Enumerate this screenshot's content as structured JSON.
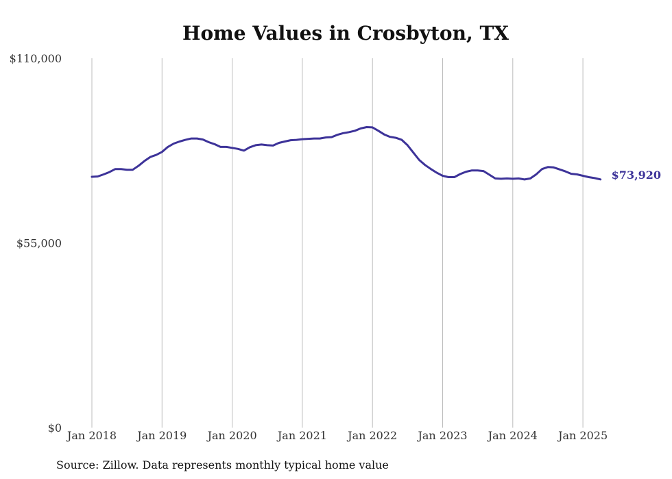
{
  "chart_data": {
    "type": "line",
    "title": "Home Values in Crosbyton, TX",
    "source_note": "Source: Zillow. Data represents monthly typical home value",
    "x_tick_labels": [
      "Jan 2018",
      "Jan 2019",
      "Jan 2020",
      "Jan 2021",
      "Jan 2022",
      "Jan 2023",
      "Jan 2024",
      "Jan 2025"
    ],
    "x_start": 2018.0,
    "x_end": 2025.25,
    "y_tick_values": [
      0,
      55000,
      110000
    ],
    "y_tick_labels": [
      "$0",
      "$55,000",
      "$110,000"
    ],
    "ylim": [
      0,
      110000
    ],
    "grid": "vertical",
    "line_color": "#3d3399",
    "end_label": "$73,920",
    "series": [
      {
        "x": [
          2018.0,
          2018.083,
          2018.167,
          2018.25,
          2018.333,
          2018.417,
          2018.5,
          2018.583,
          2018.667,
          2018.75,
          2018.833,
          2018.917,
          2019.0,
          2019.083,
          2019.167,
          2019.25,
          2019.333,
          2019.417,
          2019.5,
          2019.583,
          2019.667,
          2019.75,
          2019.833,
          2019.917,
          2020.0,
          2020.083,
          2020.167,
          2020.25,
          2020.333,
          2020.417,
          2020.5,
          2020.583,
          2020.667,
          2020.75,
          2020.833,
          2020.917,
          2021.0,
          2021.083,
          2021.167,
          2021.25,
          2021.333,
          2021.417,
          2021.5,
          2021.583,
          2021.667,
          2021.75,
          2021.833,
          2021.917,
          2022.0,
          2022.083,
          2022.167,
          2022.25,
          2022.333,
          2022.417,
          2022.5,
          2022.583,
          2022.667,
          2022.75,
          2022.833,
          2022.917,
          2023.0,
          2023.083,
          2023.167,
          2023.25,
          2023.333,
          2023.417,
          2023.5,
          2023.583,
          2023.667,
          2023.75,
          2023.833,
          2023.917,
          2024.0,
          2024.083,
          2024.167,
          2024.25,
          2024.333,
          2024.417,
          2024.5,
          2024.583,
          2024.667,
          2024.75,
          2024.833,
          2024.917,
          2025.0,
          2025.083,
          2025.167,
          2025.25
        ],
        "values": [
          74700,
          74800,
          75400,
          76100,
          77000,
          77000,
          76800,
          76800,
          78000,
          79400,
          80600,
          81200,
          82100,
          83600,
          84600,
          85200,
          85700,
          86100,
          86100,
          85800,
          85000,
          84400,
          83600,
          83600,
          83300,
          83000,
          82500,
          83500,
          84100,
          84300,
          84100,
          84000,
          84800,
          85200,
          85600,
          85700,
          85900,
          86000,
          86100,
          86100,
          86400,
          86500,
          87200,
          87700,
          88000,
          88400,
          89100,
          89500,
          89400,
          88400,
          87300,
          86600,
          86300,
          85700,
          84100,
          81900,
          79700,
          78200,
          77000,
          75900,
          75000,
          74600,
          74600,
          75500,
          76200,
          76600,
          76600,
          76400,
          75300,
          74200,
          74100,
          74200,
          74100,
          74200,
          73900,
          74200,
          75400,
          77000,
          77600,
          77500,
          76900,
          76300,
          75600,
          75400,
          75000,
          74600,
          74300,
          73920
        ]
      }
    ]
  }
}
